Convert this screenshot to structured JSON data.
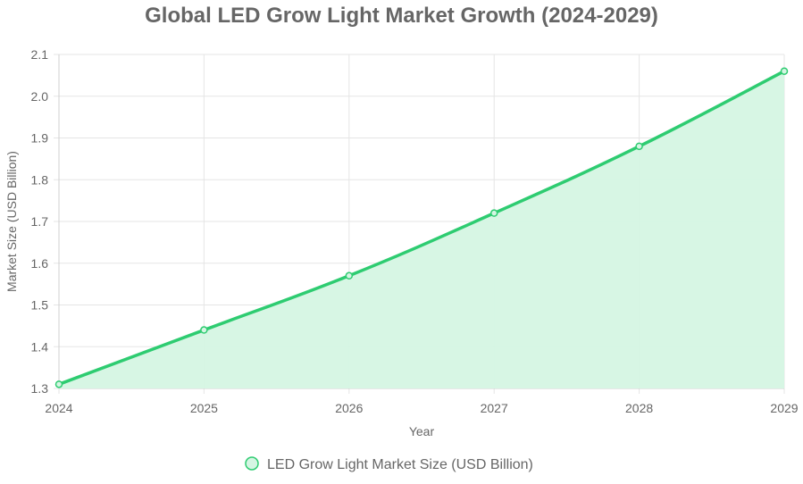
{
  "chart_data": {
    "type": "line",
    "title": "Global LED Grow Light Market Growth (2024-2029)",
    "xlabel": "Year",
    "ylabel": "Market Size (USD Billion)",
    "categories": [
      "2024",
      "2025",
      "2026",
      "2027",
      "2028",
      "2029"
    ],
    "y_ticks": [
      "1.3",
      "1.4",
      "1.5",
      "1.6",
      "1.7",
      "1.8",
      "1.9",
      "2.0",
      "2.1"
    ],
    "ylim": [
      1.3,
      2.1
    ],
    "grid": true,
    "legend_position": "bottom",
    "series": [
      {
        "name": "LED Grow Light Market Size (USD Billion)",
        "values": [
          1.31,
          1.44,
          1.57,
          1.72,
          1.88,
          2.06
        ],
        "fill": true,
        "line_color": "#2ecc71",
        "fill_color": "#d5f5e3"
      }
    ]
  }
}
